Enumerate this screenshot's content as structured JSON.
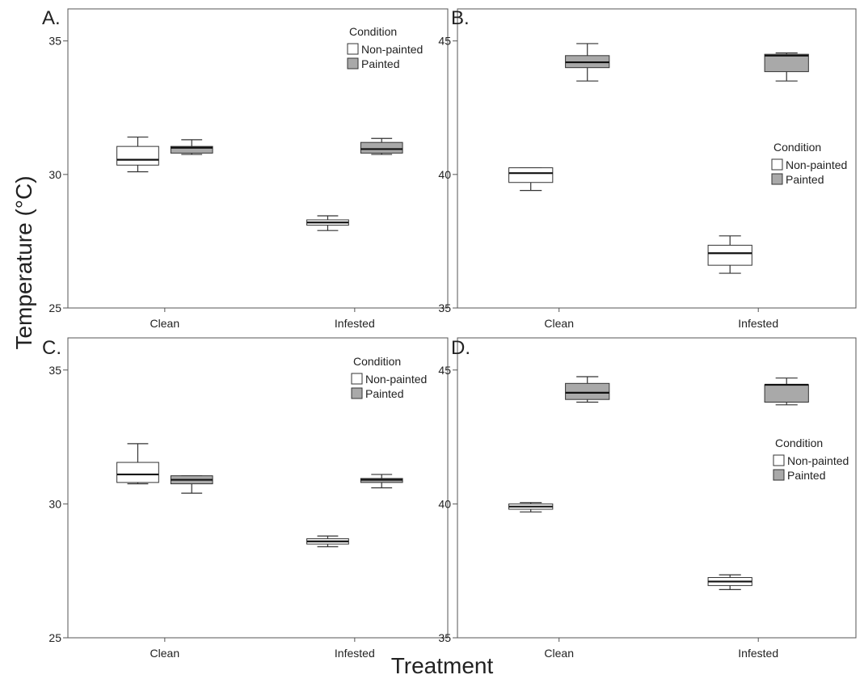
{
  "shared": {
    "ylabel": "Temperature (°C)",
    "xlabel": "Treatment"
  },
  "colors": {
    "non_painted": "#ffffff",
    "painted": "#a9a9a9",
    "stroke": "#333333"
  },
  "chart_data": [
    {
      "type": "boxplot",
      "panel_label": "A.",
      "categories": [
        "Clean",
        "Infested"
      ],
      "ylim": [
        25,
        36.2
      ],
      "yticks": [
        25,
        30,
        35
      ],
      "legend": {
        "title": "Condition",
        "position": "top-right",
        "entries": [
          "Non-painted",
          "Painted"
        ]
      },
      "series": [
        {
          "name": "Non-painted",
          "boxes": [
            {
              "min": 30.1,
              "q1": 30.35,
              "median": 30.55,
              "q3": 31.05,
              "max": 31.4
            },
            {
              "min": 27.9,
              "q1": 28.1,
              "median": 28.2,
              "q3": 28.3,
              "max": 28.45
            }
          ]
        },
        {
          "name": "Painted",
          "boxes": [
            {
              "min": 30.75,
              "q1": 30.8,
              "median": 31.0,
              "q3": 31.05,
              "max": 31.3
            },
            {
              "min": 30.75,
              "q1": 30.8,
              "median": 30.95,
              "q3": 31.2,
              "max": 31.35
            }
          ]
        }
      ]
    },
    {
      "type": "boxplot",
      "panel_label": "B.",
      "categories": [
        "Clean",
        "Infested"
      ],
      "ylim": [
        35,
        46.2
      ],
      "yticks": [
        35,
        40,
        45
      ],
      "legend": {
        "title": "Condition",
        "position": "center-right",
        "entries": [
          "Non-painted",
          "Painted"
        ]
      },
      "series": [
        {
          "name": "Non-painted",
          "boxes": [
            {
              "min": 39.4,
              "q1": 39.7,
              "median": 40.05,
              "q3": 40.25,
              "max": 40.25
            },
            {
              "min": 36.3,
              "q1": 36.6,
              "median": 37.05,
              "q3": 37.35,
              "max": 37.7
            }
          ]
        },
        {
          "name": "Painted",
          "boxes": [
            {
              "min": 43.5,
              "q1": 44.0,
              "median": 44.2,
              "q3": 44.45,
              "max": 44.9
            },
            {
              "min": 43.5,
              "q1": 43.85,
              "median": 44.45,
              "q3": 44.5,
              "max": 44.55
            }
          ]
        }
      ]
    },
    {
      "type": "boxplot",
      "panel_label": "C.",
      "categories": [
        "Clean",
        "Infested"
      ],
      "ylim": [
        25,
        36.2
      ],
      "yticks": [
        25,
        30,
        35
      ],
      "legend": {
        "title": "Condition",
        "position": "top-right",
        "entries": [
          "Non-painted",
          "Painted"
        ]
      },
      "series": [
        {
          "name": "Non-painted",
          "boxes": [
            {
              "min": 30.75,
              "q1": 30.8,
              "median": 31.1,
              "q3": 31.55,
              "max": 32.25
            },
            {
              "min": 28.4,
              "q1": 28.5,
              "median": 28.6,
              "q3": 28.7,
              "max": 28.8
            }
          ]
        },
        {
          "name": "Painted",
          "boxes": [
            {
              "min": 30.4,
              "q1": 30.75,
              "median": 30.9,
              "q3": 31.05,
              "max": 31.05
            },
            {
              "min": 30.6,
              "q1": 30.8,
              "median": 30.9,
              "q3": 30.95,
              "max": 31.1
            }
          ]
        }
      ]
    },
    {
      "type": "boxplot",
      "panel_label": "D.",
      "categories": [
        "Clean",
        "Infested"
      ],
      "ylim": [
        35,
        46.2
      ],
      "yticks": [
        35,
        40,
        45
      ],
      "legend": {
        "title": "Condition",
        "position": "center-right",
        "entries": [
          "Non-painted",
          "Painted"
        ]
      },
      "series": [
        {
          "name": "Non-painted",
          "boxes": [
            {
              "min": 39.7,
              "q1": 39.8,
              "median": 39.9,
              "q3": 40.0,
              "max": 40.05
            },
            {
              "min": 36.8,
              "q1": 36.95,
              "median": 37.1,
              "q3": 37.25,
              "max": 37.35
            }
          ]
        },
        {
          "name": "Painted",
          "boxes": [
            {
              "min": 43.8,
              "q1": 43.9,
              "median": 44.15,
              "q3": 44.5,
              "max": 44.75
            },
            {
              "min": 43.7,
              "q1": 43.8,
              "median": 44.45,
              "q3": 44.45,
              "max": 44.7
            }
          ]
        }
      ]
    }
  ]
}
